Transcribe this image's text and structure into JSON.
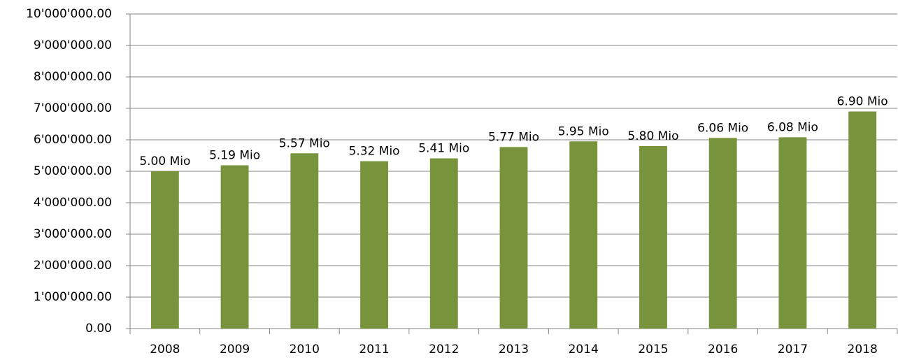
{
  "chart_data": {
    "type": "bar",
    "categories": [
      "2008",
      "2009",
      "2010",
      "2011",
      "2012",
      "2013",
      "2014",
      "2015",
      "2016",
      "2017",
      "2018"
    ],
    "values": [
      5000000,
      5190000,
      5570000,
      5320000,
      5410000,
      5770000,
      5950000,
      5800000,
      6060000,
      6080000,
      6900000
    ],
    "value_labels": [
      "5.00 Mio",
      "5.19 Mio",
      "5.57 Mio",
      "5.32 Mio",
      "5.41 Mio",
      "5.77 Mio",
      "5.95 Mio",
      "5.80 Mio",
      "6.06 Mio",
      "6.08 Mio",
      "6.90 Mio"
    ],
    "color": "#77933c",
    "ylim": [
      0,
      10000000
    ],
    "yticks": [
      {
        "value": 0,
        "label": "0.00"
      },
      {
        "value": 1000000,
        "label": "1'000'000.00"
      },
      {
        "value": 2000000,
        "label": "2'000'000.00"
      },
      {
        "value": 3000000,
        "label": "3'000'000.00"
      },
      {
        "value": 4000000,
        "label": "4'000'000.00"
      },
      {
        "value": 5000000,
        "label": "5'000'000.00"
      },
      {
        "value": 6000000,
        "label": "6'000'000.00"
      },
      {
        "value": 7000000,
        "label": "7'000'000.00"
      },
      {
        "value": 8000000,
        "label": "8'000'000.00"
      },
      {
        "value": 9000000,
        "label": "9'000'000.00"
      },
      {
        "value": 10000000,
        "label": "10'000'000.00"
      }
    ],
    "grid": true
  }
}
